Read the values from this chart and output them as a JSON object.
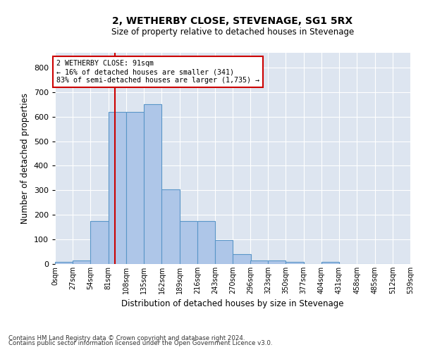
{
  "title": "2, WETHERBY CLOSE, STEVENAGE, SG1 5RX",
  "subtitle": "Size of property relative to detached houses in Stevenage",
  "xlabel": "Distribution of detached houses by size in Stevenage",
  "ylabel": "Number of detached properties",
  "bar_values": [
    8,
    13,
    175,
    618,
    620,
    650,
    305,
    175,
    175,
    97,
    40,
    15,
    13,
    10,
    0,
    8,
    0,
    0,
    0,
    0
  ],
  "bin_edges": [
    0,
    27,
    54,
    81,
    108,
    135,
    162,
    189,
    216,
    243,
    270,
    296,
    323,
    350,
    377,
    404,
    431,
    458,
    485,
    512,
    539
  ],
  "tick_labels": [
    "0sqm",
    "27sqm",
    "54sqm",
    "81sqm",
    "108sqm",
    "135sqm",
    "162sqm",
    "189sqm",
    "216sqm",
    "243sqm",
    "270sqm",
    "296sqm",
    "323sqm",
    "350sqm",
    "377sqm",
    "404sqm",
    "431sqm",
    "458sqm",
    "485sqm",
    "512sqm",
    "539sqm"
  ],
  "bar_color": "#aec6e8",
  "bar_edge_color": "#5a96c8",
  "property_sqm": 91,
  "vline_color": "#cc0000",
  "annotation_text": "2 WETHERBY CLOSE: 91sqm\n← 16% of detached houses are smaller (341)\n83% of semi-detached houses are larger (1,735) →",
  "annotation_box_color": "#cc0000",
  "ylim": [
    0,
    860
  ],
  "yticks": [
    0,
    100,
    200,
    300,
    400,
    500,
    600,
    700,
    800
  ],
  "background_color": "#dde5f0",
  "footer_line1": "Contains HM Land Registry data © Crown copyright and database right 2024.",
  "footer_line2": "Contains public sector information licensed under the Open Government Licence v3.0."
}
